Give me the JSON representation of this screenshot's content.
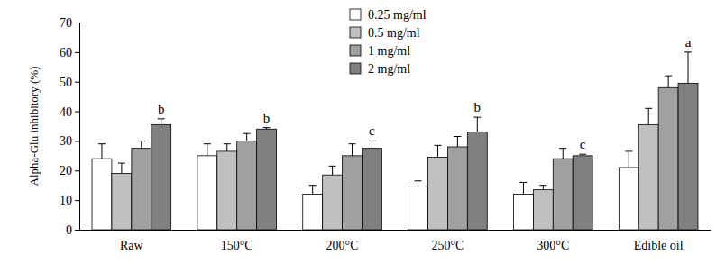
{
  "chart_data": {
    "type": "bar",
    "y_label": "Alpha-Glu inhibitory (%)",
    "categories": [
      "Raw",
      "150°C",
      "200°C",
      "250°C",
      "300°C",
      "Edible oil"
    ],
    "series": [
      {
        "name": "0.25 mg/ml",
        "color": "#ffffff",
        "values": [
          24,
          25,
          12,
          14.5,
          12,
          21
        ],
        "errors": [
          5,
          4,
          3,
          2,
          4,
          5.5
        ]
      },
      {
        "name": "0.5 mg/ml",
        "color": "#c0c0c0",
        "values": [
          19,
          26.5,
          18.5,
          24.5,
          13.5,
          35.5
        ],
        "errors": [
          3.5,
          2.5,
          3,
          4,
          1.5,
          5.5
        ]
      },
      {
        "name": "1 mg/ml",
        "color": "#a0a0a0",
        "values": [
          27.5,
          30,
          25,
          28,
          24,
          48
        ],
        "errors": [
          2.5,
          2.5,
          4,
          3.5,
          3.5,
          4
        ]
      },
      {
        "name": "2 mg/ml",
        "color": "#808080",
        "values": [
          35.5,
          34,
          27.5,
          33,
          25,
          49.5
        ],
        "errors": [
          2,
          0.5,
          2.5,
          5,
          0.5,
          10.5
        ],
        "letters": [
          "b",
          "b",
          "c",
          "b",
          "c",
          "a"
        ]
      }
    ],
    "ylim": [
      0,
      70
    ],
    "yticks": [
      0,
      10,
      20,
      30,
      40,
      50,
      60,
      70
    ],
    "grid": false,
    "legend": "top"
  }
}
